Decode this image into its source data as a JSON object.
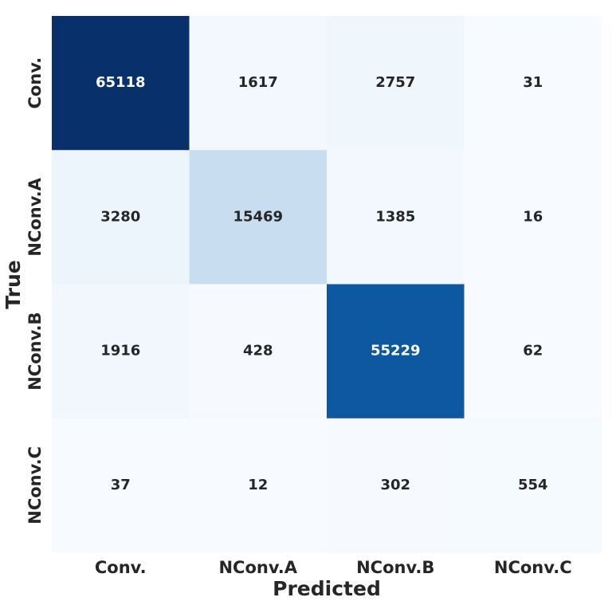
{
  "chart_data": {
    "type": "heatmap",
    "x_label": "Predicted",
    "y_label": "True",
    "columns": [
      "Conv.",
      "NConv.A",
      "NConv.B",
      "NConv.C"
    ],
    "rows": [
      "Conv.",
      "NConv.A",
      "NConv.B",
      "NConv.C"
    ],
    "values": [
      [
        65118,
        1617,
        2757,
        31
      ],
      [
        3280,
        15469,
        1385,
        16
      ],
      [
        1916,
        428,
        55229,
        62
      ],
      [
        37,
        12,
        302,
        554
      ]
    ],
    "colormap": [
      "#f7fbff",
      "#deebf7",
      "#c6dbef",
      "#9ecae1",
      "#6baed6",
      "#4292c6",
      "#2171b5",
      "#08519c",
      "#08306b"
    ]
  }
}
